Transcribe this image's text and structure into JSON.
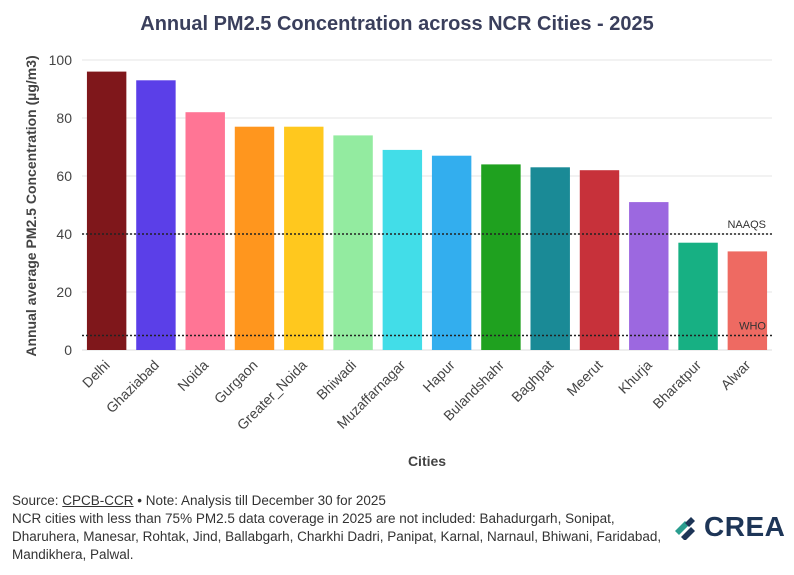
{
  "chart_data": {
    "type": "bar",
    "title": "Annual PM2.5 Concentration across NCR Cities - 2025",
    "xlabel": "Cities",
    "ylabel": "Annual average PM2.5 Concentration (µg/m3)",
    "ylim": [
      0,
      100
    ],
    "yticks": [
      0,
      20,
      40,
      60,
      80,
      100
    ],
    "categories": [
      "Delhi",
      "Ghaziabad",
      "Noida",
      "Gurgaon",
      "Greater_Noida",
      "Bhiwadi",
      "Muzaffarnagar",
      "Hapur",
      "Bulandshahr",
      "Baghpat",
      "Meerut",
      "Khurja",
      "Bharatpur",
      "Alwar"
    ],
    "values": [
      96,
      93,
      82,
      77,
      77,
      74,
      69,
      67,
      64,
      63,
      62,
      51,
      37,
      34
    ],
    "colors": [
      "#7f171b",
      "#5b3fe8",
      "#ff7595",
      "#ff961e",
      "#ffc81e",
      "#93eba0",
      "#42dde8",
      "#33aeee",
      "#1fa11f",
      "#1a8a96",
      "#c7313a",
      "#9c68e0",
      "#17b083",
      "#ee6a62"
    ],
    "reference_lines": [
      {
        "label": "NAAQS",
        "value": 40
      },
      {
        "label": "WHO",
        "value": 5
      }
    ],
    "grid": true
  },
  "footer": {
    "source_prefix": "Source: ",
    "source_link": "CPCB-CCR",
    "note": " • Note: Analysis till December 30 for 2025",
    "coverage_note": "NCR cities with less than 75% PM2.5 data coverage in 2025 are not included: Bahadurgarh, Sonipat, Dharuhera, Manesar, Rohtak, Jind, Ballabgarh, Charkhi Dadri, Panipat, Karnal, Narnaul, Bhiwani, Faridabad, Mandikhera, Palwal."
  },
  "logo": {
    "text": "CREA",
    "colors": [
      "#2a9d8f",
      "#1d3557"
    ]
  }
}
